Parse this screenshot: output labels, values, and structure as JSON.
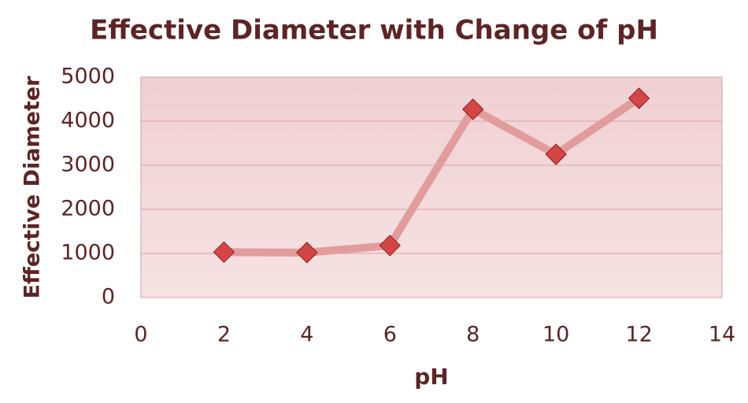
{
  "chart_data": {
    "type": "line",
    "title": "Effective Diameter with Change of pH",
    "x_label": "pH",
    "y_label": "Effective Diameter",
    "x": [
      2,
      4,
      6,
      8,
      10,
      12
    ],
    "values": [
      1030,
      1020,
      1180,
      4270,
      3250,
      4520
    ],
    "color": "#e29c9c",
    "marker_color": "#d64545",
    "xlim": [
      0,
      14
    ],
    "xticks": [
      0,
      2,
      4,
      6,
      8,
      10,
      12,
      14
    ],
    "ylim": [
      0,
      5000
    ],
    "yticks": [
      0,
      1000,
      2000,
      3000,
      4000,
      5000
    ],
    "grid": true
  }
}
